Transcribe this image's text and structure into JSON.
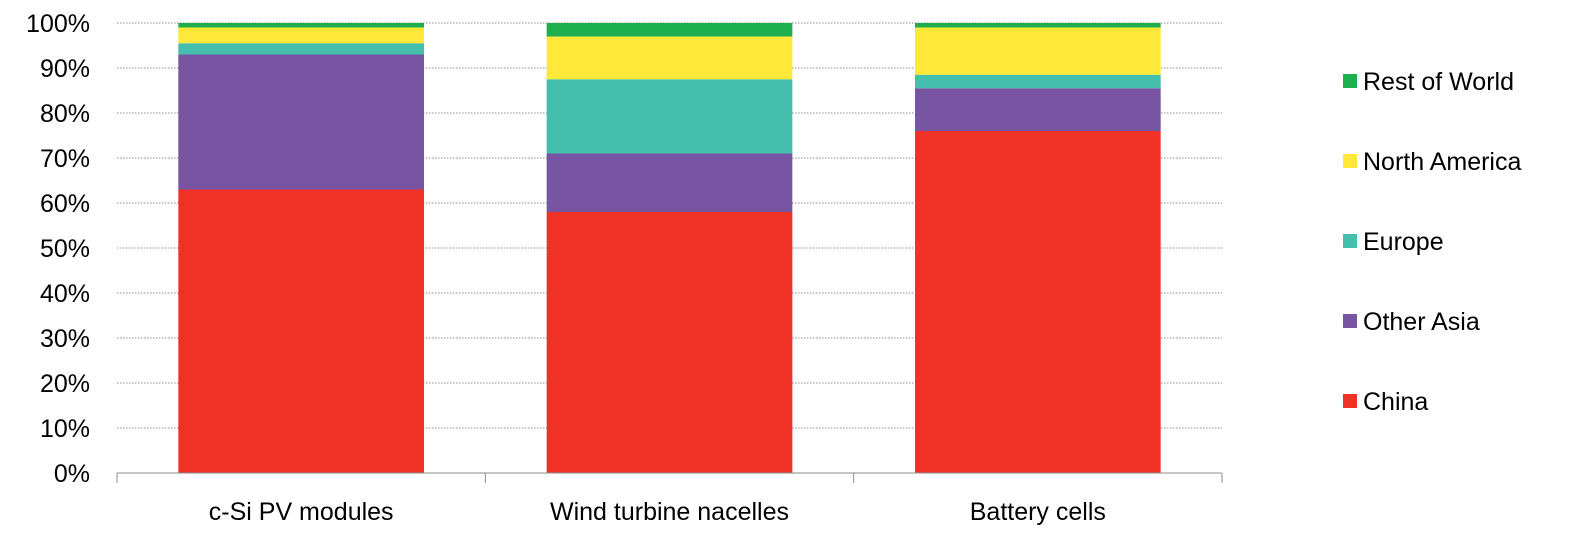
{
  "chart_data": {
    "type": "bar",
    "stacked": true,
    "title": "",
    "xlabel": "",
    "ylabel": "",
    "ylim": [
      0,
      100
    ],
    "y_unit": "%",
    "y_ticks": [
      "0%",
      "10%",
      "20%",
      "30%",
      "40%",
      "50%",
      "60%",
      "70%",
      "80%",
      "90%",
      "100%"
    ],
    "grid": true,
    "legend_position": "right",
    "categories": [
      "c-Si PV modules",
      "Wind turbine nacelles",
      "Battery cells"
    ],
    "series": [
      {
        "name": "China",
        "color": "#f03226",
        "values": [
          63,
          58,
          76
        ]
      },
      {
        "name": "Other Asia",
        "color": "#7755a2",
        "values": [
          30,
          13,
          9.5
        ]
      },
      {
        "name": "Europe",
        "color": "#44bfae",
        "values": [
          2.5,
          16.5,
          3
        ]
      },
      {
        "name": "North America",
        "color": "#ffe83a",
        "values": [
          3.5,
          9.5,
          10.5
        ]
      },
      {
        "name": "Rest of World",
        "color": "#1daf4e",
        "values": [
          1,
          3,
          1
        ]
      }
    ]
  }
}
